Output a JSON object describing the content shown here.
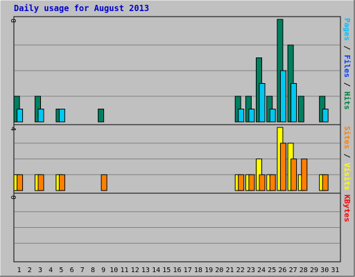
{
  "chart_data": {
    "type": "bar",
    "title": "Daily usage for August 2013",
    "days": [
      "1",
      "2",
      "3",
      "4",
      "5",
      "6",
      "7",
      "8",
      "9",
      "10",
      "11",
      "12",
      "13",
      "14",
      "15",
      "16",
      "17",
      "18",
      "19",
      "20",
      "21",
      "22",
      "23",
      "24",
      "25",
      "26",
      "27",
      "28",
      "29",
      "30",
      "31"
    ],
    "weekend_days": [
      3,
      4,
      10,
      11,
      17,
      18,
      24,
      25,
      31
    ],
    "panels": [
      {
        "name": "hits-files-pages",
        "ymax": 8,
        "ymax_label": "8",
        "legend": [
          {
            "text": "Pages",
            "color": "#00c0ff"
          },
          {
            "text": " / ",
            "color": "#000000"
          },
          {
            "text": "Files",
            "color": "#0040ff"
          },
          {
            "text": " / ",
            "color": "#000000"
          },
          {
            "text": "Hits",
            "color": "#008040"
          }
        ],
        "series": [
          {
            "name": "Hits",
            "color": "#008060",
            "values": [
              2,
              0,
              2,
              0,
              1,
              0,
              0,
              0,
              1,
              0,
              0,
              0,
              0,
              0,
              0,
              0,
              0,
              0,
              0,
              0,
              0,
              2,
              2,
              5,
              2,
              8,
              6,
              2,
              0,
              2,
              0
            ]
          },
          {
            "name": "Files",
            "color": "#00c8f0",
            "values": [
              1,
              0,
              1,
              0,
              1,
              0,
              0,
              0,
              0,
              0,
              0,
              0,
              0,
              0,
              0,
              0,
              0,
              0,
              0,
              0,
              0,
              1,
              1,
              3,
              1,
              4,
              3,
              0,
              0,
              1,
              0
            ]
          }
        ]
      },
      {
        "name": "visits-sites",
        "ymax": 4,
        "ymax_label": "4",
        "legend": [
          {
            "text": "Sites",
            "color": "#ff8000"
          },
          {
            "text": " / ",
            "color": "#000000"
          },
          {
            "text": "Visits",
            "color": "#ffff00"
          }
        ],
        "series": [
          {
            "name": "Visits",
            "color": "#ffff00",
            "values": [
              1,
              0,
              1,
              0,
              1,
              0,
              0,
              0,
              0,
              0,
              0,
              0,
              0,
              0,
              0,
              0,
              0,
              0,
              0,
              0,
              0,
              1,
              1,
              2,
              1,
              4,
              3,
              1,
              0,
              1,
              0
            ]
          },
          {
            "name": "Sites",
            "color": "#ff8000",
            "values": [
              1,
              0,
              1,
              0,
              1,
              0,
              0,
              0,
              1,
              0,
              0,
              0,
              0,
              0,
              0,
              0,
              0,
              0,
              0,
              0,
              0,
              1,
              1,
              1,
              1,
              3,
              2,
              2,
              0,
              1,
              0
            ]
          }
        ]
      },
      {
        "name": "kbytes",
        "ymax": 0,
        "ymax_label": "0",
        "legend": [
          {
            "text": "KBytes",
            "color": "#ff0000"
          }
        ],
        "series": [
          {
            "name": "KBytes",
            "color": "#ff0000",
            "values": [
              0,
              0,
              0,
              0,
              0,
              0,
              0,
              0,
              0,
              0,
              0,
              0,
              0,
              0,
              0,
              0,
              0,
              0,
              0,
              0,
              0,
              0,
              0,
              0,
              0,
              0,
              0,
              0,
              0,
              0,
              0
            ]
          }
        ]
      }
    ],
    "colors": {
      "background": "#c0c0c0",
      "plot": "#c0c0c0",
      "grid": "#808080",
      "weekday_label": "#000000",
      "weekend_label": "#008040"
    }
  }
}
